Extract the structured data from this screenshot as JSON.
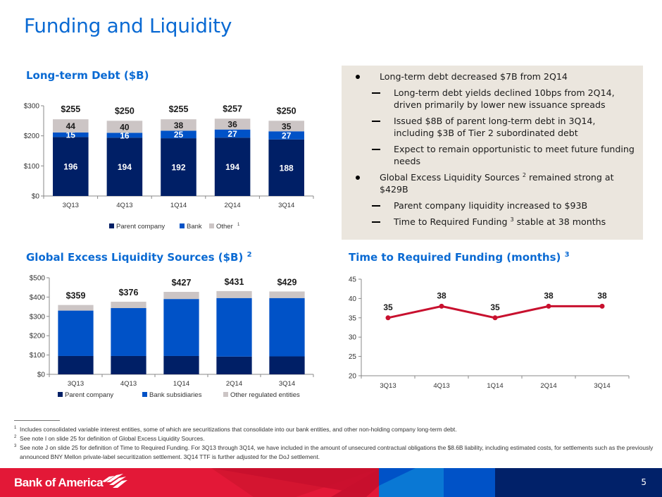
{
  "page": {
    "title": "Funding and Liquidity",
    "page_number": "5",
    "brand": "Bank of America",
    "colors": {
      "title_blue": "#0a6ad3",
      "parent_company": "#001f66",
      "bank": "#0052c7",
      "other": "#ccc5c5",
      "ttf_line": "#c8102e",
      "footer_red": "#e31837",
      "footer_navy": "#012169",
      "bullet_box_bg": "#ebe6de"
    }
  },
  "sections": {
    "ltd_title": "Long-term Debt ($B)",
    "gels_title": "Global Excess Liquidity Sources ($B)",
    "gels_note": "2",
    "ttf_title": "Time to Required Funding (months)",
    "ttf_note": "3"
  },
  "bullets": [
    {
      "level": 1,
      "text": "Long-term debt decreased $7B from 2Q14"
    },
    {
      "level": 2,
      "text": "Long-term debt yields declined 10bps from 2Q14, driven primarily by lower new issuance spreads"
    },
    {
      "level": 2,
      "text": "Issued $8B of parent long-term debt in 3Q14, including $3B of Tier 2 subordinated debt"
    },
    {
      "level": 2,
      "text": "Expect to remain opportunistic to meet future funding needs"
    },
    {
      "level": 1,
      "text_before": "Global Excess Liquidity Sources ",
      "sup": "2",
      "text_after": " remained strong at $429B"
    },
    {
      "level": 2,
      "text": "Parent company liquidity increased to $93B"
    },
    {
      "level": 2,
      "text_before": "Time to Required Funding ",
      "sup": "3",
      "text_after": " stable at 38 months"
    }
  ],
  "chart_data": [
    {
      "id": "long-term-debt",
      "type": "bar",
      "stacked": true,
      "title": "Long-term Debt ($B)",
      "categories": [
        "3Q13",
        "4Q13",
        "1Q14",
        "2Q14",
        "3Q14"
      ],
      "series": [
        {
          "name": "Parent company",
          "values": [
            196,
            194,
            192,
            194,
            188
          ]
        },
        {
          "name": "Bank",
          "values": [
            15,
            16,
            25,
            27,
            27
          ]
        },
        {
          "name": "Other",
          "note": "1",
          "values": [
            44,
            40,
            38,
            36,
            35
          ]
        }
      ],
      "totals": [
        "$255",
        "$250",
        "$255",
        "$257",
        "$250"
      ],
      "yticks": [
        "$0",
        "$100",
        "$200",
        "$300"
      ],
      "ylim": [
        0,
        300
      ],
      "legend_position": "bottom",
      "grid": false
    },
    {
      "id": "global-excess-liquidity",
      "type": "bar",
      "stacked": true,
      "title": "Global Excess Liquidity Sources ($B)",
      "categories": [
        "3Q13",
        "4Q13",
        "1Q14",
        "2Q14",
        "3Q14"
      ],
      "series": [
        {
          "name": "Parent company",
          "values": [
            95,
            95,
            95,
            92,
            93
          ]
        },
        {
          "name": "Bank subsidiaries",
          "values": [
            235,
            248,
            295,
            303,
            302
          ]
        },
        {
          "name": "Other regulated entities",
          "values": [
            29,
            33,
            37,
            36,
            34
          ]
        }
      ],
      "totals": [
        "$359",
        "$376",
        "$427",
        "$431",
        "$429"
      ],
      "yticks": [
        "$0",
        "$100",
        "$200",
        "$300",
        "$400",
        "$500"
      ],
      "ylim": [
        0,
        500
      ],
      "legend_position": "bottom",
      "grid": false
    },
    {
      "id": "time-to-required-funding",
      "type": "line",
      "title": "Time to Required Funding (months)",
      "categories": [
        "3Q13",
        "4Q13",
        "1Q14",
        "2Q14",
        "3Q14"
      ],
      "series": [
        {
          "name": "Time to Required Funding",
          "values": [
            35,
            38,
            35,
            38,
            38
          ]
        }
      ],
      "yticks": [
        "20",
        "25",
        "30",
        "35",
        "40",
        "45"
      ],
      "ylim": [
        20,
        45
      ],
      "legend_position": "none",
      "grid": false
    }
  ],
  "footnotes": [
    {
      "num": "1",
      "text": "Includes consolidated variable interest entities, some of which are securitizations that consolidate into our bank entities, and other non-holding company long-term debt."
    },
    {
      "num": "2",
      "text": "See note I on slide 25 for definition of Global Excess Liquidity Sources."
    },
    {
      "num": "3",
      "text": "See note J on slide 25 for definition of Time to Required Funding. For 3Q13 through 3Q14, we have included in the amount of unsecured contractual obligations the $8.6B liability, including estimated costs, for settlements such as the previously announced BNY Mellon private-label securitization settlement. 3Q14 TTF is further adjusted for the DoJ settlement."
    }
  ]
}
